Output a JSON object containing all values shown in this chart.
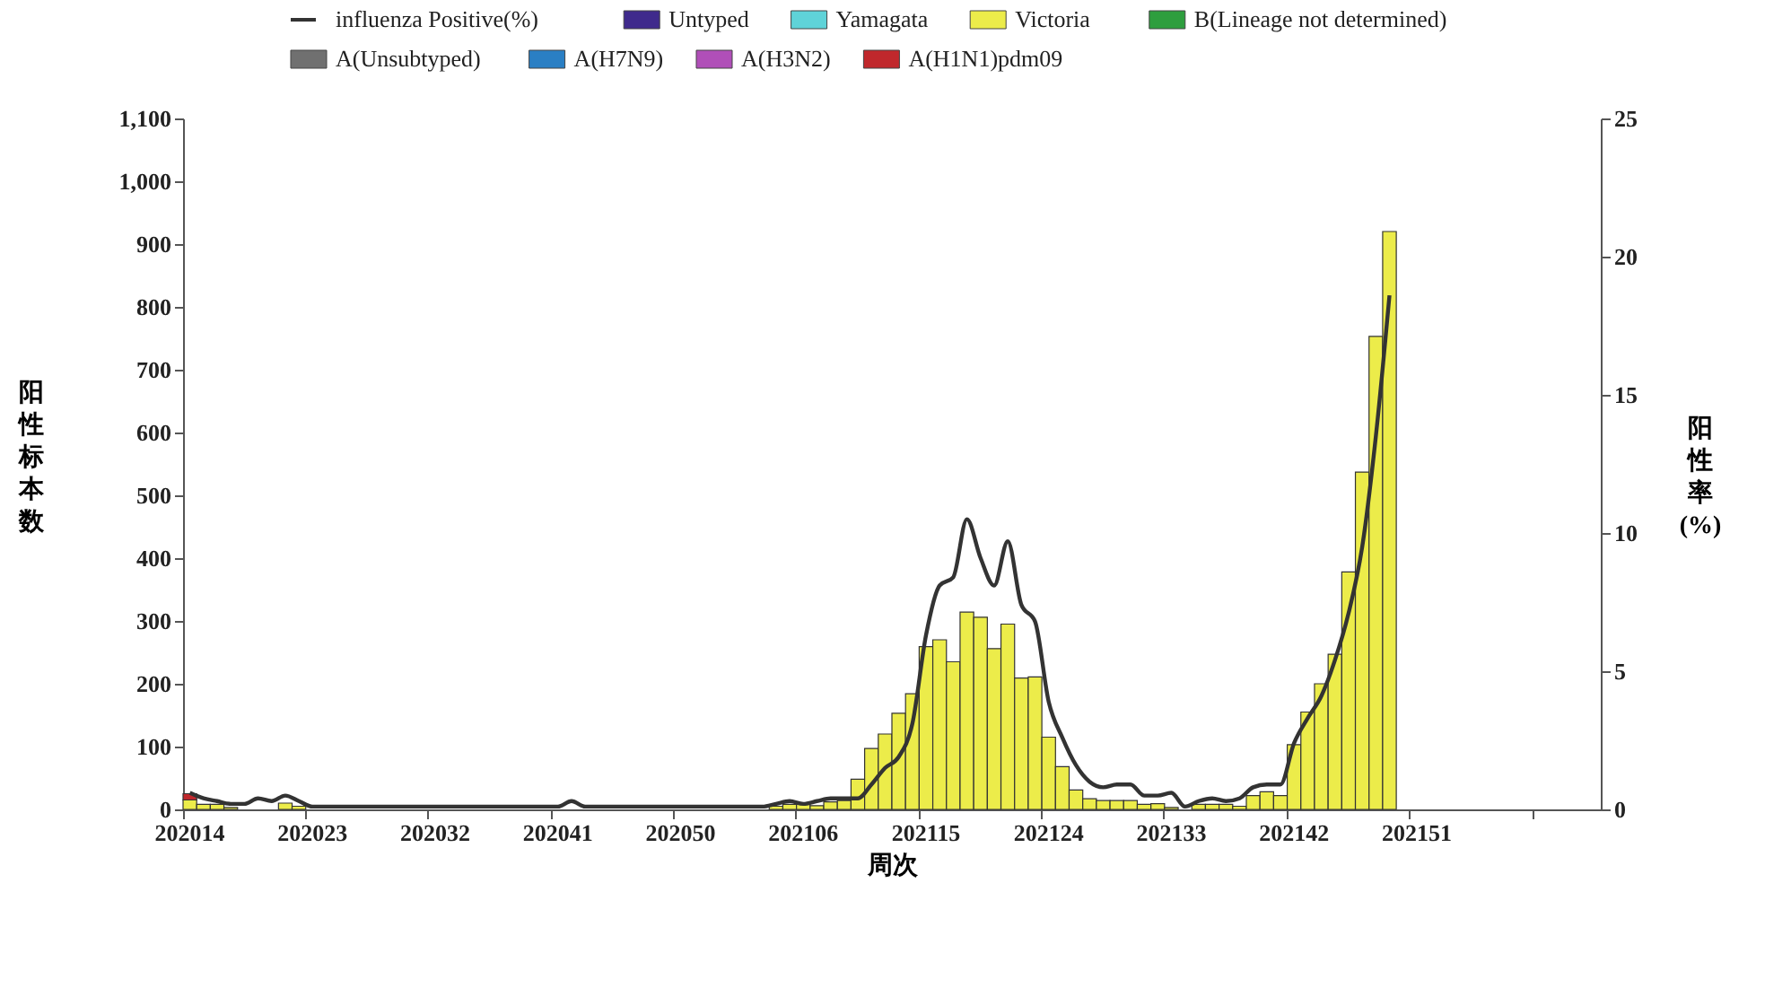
{
  "chart_data": {
    "type": "bar",
    "stacked": true,
    "xlabel": "周次",
    "ylabel": "阳性标本数",
    "y2label": "阳性率(%)",
    "categories": [
      "202014",
      null,
      null,
      null,
      null,
      null,
      null,
      null,
      null,
      "202023",
      null,
      null,
      null,
      null,
      null,
      null,
      null,
      null,
      "202032",
      null,
      null,
      null,
      null,
      null,
      null,
      null,
      null,
      "202041",
      null,
      null,
      null,
      null,
      null,
      null,
      null,
      null,
      "202050",
      null,
      null,
      null,
      null,
      null,
      null,
      null,
      null,
      "202106",
      null,
      null,
      null,
      null,
      null,
      null,
      null,
      null,
      "202115",
      null,
      null,
      null,
      null,
      null,
      null,
      null,
      null,
      "202124",
      null,
      null,
      null,
      null,
      null,
      null,
      null,
      null,
      "202133",
      null,
      null,
      null,
      null,
      null,
      null,
      null,
      null,
      "202142",
      null,
      null,
      null,
      null,
      null,
      null,
      null,
      null,
      "202151",
      null,
      null,
      null,
      null,
      null,
      null,
      null,
      null,
      null,
      null,
      null,
      null,
      null
    ],
    "ylim": [
      0,
      1100
    ],
    "yticks": [
      0,
      100,
      200,
      300,
      400,
      500,
      600,
      700,
      800,
      900,
      {
        "value": 1000,
        "label": "1,000"
      },
      {
        "value": 1100,
        "label": "1,100"
      }
    ],
    "y2lim": [
      0,
      25
    ],
    "y2ticks": [
      0,
      5,
      10,
      15,
      20,
      25
    ],
    "legend": "top",
    "grid": false,
    "series": [
      {
        "name": "influenza Positive(%)",
        "type": "line",
        "axis": "y2",
        "color": "#333333",
        "values": [
          0.6,
          0.4,
          0.3,
          0.2,
          0.2,
          0.4,
          0.3,
          0.5,
          0.3,
          0.1,
          0.1,
          0.1,
          0.1,
          0.1,
          0.1,
          0.1,
          0.1,
          0.1,
          0.1,
          0.1,
          0.1,
          0.1,
          0.1,
          0.1,
          0.1,
          0.1,
          0.1,
          0.1,
          0.3,
          0.1,
          0.1,
          0.1,
          0.1,
          0.1,
          0.1,
          0.1,
          0.1,
          0.1,
          0.1,
          0.1,
          0.1,
          0.1,
          0.1,
          0.2,
          0.3,
          0.2,
          0.3,
          0.4,
          0.4,
          0.4,
          0.9,
          1.5,
          1.9,
          3.1,
          6.3,
          8.1,
          8.4,
          10.5,
          9.1,
          8.1,
          9.7,
          7.4,
          6.8,
          3.9,
          2.6,
          1.6,
          1.0,
          0.8,
          0.9,
          0.9,
          0.5,
          0.5,
          0.6,
          0.1,
          0.3,
          0.4,
          0.3,
          0.4,
          0.8,
          0.9,
          0.9,
          2.4,
          3.3,
          4.1,
          5.4,
          7.1,
          9.5,
          13.5,
          18.6,
          null,
          null,
          null,
          null,
          null,
          null,
          null,
          null,
          null,
          null,
          null,
          null,
          null,
          null,
          null
        ]
      },
      {
        "name": "Untyped",
        "color": "#3f2a8c",
        "values": [
          null,
          null,
          null,
          null,
          null,
          null,
          null,
          null,
          null,
          null,
          null,
          null,
          null,
          null,
          null,
          null,
          null,
          null,
          null,
          null,
          null,
          null,
          null,
          null,
          null,
          null,
          null,
          null,
          null,
          null,
          null,
          null,
          null,
          null,
          null,
          null,
          null,
          null,
          null,
          null,
          null,
          null,
          null,
          null,
          null,
          null,
          null,
          null,
          null,
          null,
          null,
          null,
          null,
          null,
          null,
          null,
          null,
          null,
          null,
          null,
          null,
          null,
          null,
          null,
          null,
          null,
          null,
          null,
          null,
          null,
          null,
          null,
          null,
          null,
          null,
          null,
          null,
          null,
          null,
          null,
          null,
          null,
          null,
          null,
          null,
          null,
          null,
          null,
          null,
          null,
          null,
          null,
          null,
          null,
          null,
          null,
          null,
          null,
          null,
          null,
          null,
          null,
          null,
          null
        ]
      },
      {
        "name": "Yamagata",
        "color": "#5fd3d8",
        "values": [
          null,
          null,
          null,
          null,
          null,
          null,
          null,
          null,
          null,
          null,
          null,
          null,
          null,
          null,
          null,
          null,
          null,
          null,
          null,
          null,
          null,
          null,
          null,
          null,
          null,
          null,
          null,
          null,
          null,
          null,
          null,
          null,
          null,
          null,
          null,
          null,
          null,
          null,
          null,
          null,
          null,
          null,
          null,
          null,
          null,
          null,
          null,
          null,
          null,
          null,
          null,
          null,
          null,
          null,
          null,
          null,
          null,
          null,
          null,
          null,
          null,
          null,
          null,
          null,
          null,
          null,
          null,
          null,
          null,
          null,
          null,
          null,
          null,
          null,
          null,
          null,
          null,
          null,
          null,
          null,
          null,
          null,
          null,
          null,
          null,
          null,
          null,
          null,
          null,
          null,
          null,
          null,
          null,
          null,
          null,
          null,
          null,
          null,
          null,
          null,
          null,
          null,
          null,
          null
        ]
      },
      {
        "name": "Victoria",
        "color": "#ecec4a",
        "values": [
          15,
          8,
          8,
          3,
          null,
          null,
          null,
          10,
          5,
          null,
          null,
          null,
          null,
          null,
          null,
          null,
          null,
          null,
          null,
          null,
          null,
          null,
          null,
          null,
          null,
          null,
          null,
          null,
          null,
          null,
          null,
          null,
          null,
          null,
          null,
          null,
          null,
          null,
          null,
          null,
          null,
          null,
          null,
          5,
          8,
          8,
          6,
          12,
          14,
          48,
          97,
          120,
          153,
          184,
          259,
          270,
          235,
          314,
          306,
          256,
          295,
          209,
          211,
          115,
          68,
          31,
          17,
          14,
          14,
          14,
          8,
          9,
          3,
          null,
          8,
          8,
          8,
          5,
          22,
          28,
          22,
          103,
          155,
          200,
          247,
          378,
          537,
          753,
          920,
          null,
          null,
          null,
          null,
          null,
          null,
          null,
          null,
          null,
          null,
          null,
          null,
          null,
          null,
          null
        ]
      },
      {
        "name": "B(Lineage not determined)",
        "color": "#2e9e3e",
        "values": [
          null,
          null,
          null,
          null,
          null,
          null,
          null,
          null,
          null,
          null,
          null,
          null,
          null,
          null,
          null,
          null,
          null,
          null,
          null,
          null,
          null,
          null,
          null,
          null,
          null,
          null,
          null,
          null,
          null,
          null,
          null,
          null,
          null,
          null,
          null,
          null,
          null,
          null,
          null,
          null,
          null,
          null,
          null,
          null,
          null,
          null,
          null,
          null,
          null,
          null,
          null,
          null,
          null,
          null,
          null,
          null,
          null,
          null,
          null,
          null,
          null,
          null,
          null,
          null,
          null,
          null,
          null,
          null,
          null,
          null,
          null,
          null,
          null,
          null,
          null,
          null,
          null,
          null,
          null,
          null,
          null,
          null,
          null,
          null,
          null,
          null,
          null,
          null,
          null,
          null,
          null,
          null,
          null,
          null,
          null,
          null,
          null,
          null,
          null,
          null,
          null,
          null,
          null,
          null
        ]
      },
      {
        "name": "A(Unsubtyped)",
        "color": "#707070",
        "values": [
          null,
          null,
          null,
          null,
          null,
          null,
          null,
          null,
          null,
          null,
          null,
          null,
          null,
          null,
          null,
          null,
          null,
          null,
          null,
          null,
          null,
          null,
          null,
          null,
          null,
          null,
          null,
          null,
          null,
          null,
          null,
          null,
          null,
          null,
          null,
          null,
          null,
          null,
          null,
          null,
          null,
          null,
          null,
          null,
          null,
          null,
          null,
          null,
          null,
          null,
          null,
          null,
          null,
          null,
          null,
          null,
          null,
          null,
          null,
          null,
          null,
          null,
          null,
          null,
          null,
          null,
          null,
          null,
          null,
          null,
          null,
          null,
          null,
          null,
          null,
          null,
          null,
          null,
          null,
          null,
          null,
          null,
          null,
          null,
          null,
          null,
          null,
          null,
          null,
          null,
          null,
          null,
          null,
          null,
          null,
          null,
          null,
          null,
          null,
          null,
          null,
          null,
          null,
          null
        ]
      },
      {
        "name": "A(H7N9)",
        "color": "#2a7fc4",
        "values": [
          null,
          null,
          null,
          null,
          null,
          null,
          null,
          null,
          null,
          null,
          null,
          null,
          null,
          null,
          null,
          null,
          null,
          null,
          null,
          null,
          null,
          null,
          null,
          null,
          null,
          null,
          null,
          null,
          null,
          null,
          null,
          null,
          null,
          null,
          null,
          null,
          null,
          null,
          null,
          null,
          null,
          null,
          null,
          null,
          null,
          null,
          null,
          null,
          null,
          null,
          null,
          null,
          null,
          null,
          null,
          null,
          null,
          null,
          null,
          null,
          null,
          null,
          null,
          null,
          null,
          null,
          null,
          null,
          null,
          null,
          null,
          null,
          null,
          null,
          null,
          null,
          null,
          null,
          null,
          null,
          null,
          null,
          null,
          null,
          null,
          null,
          null,
          null,
          null,
          null,
          null,
          null,
          null,
          null,
          null,
          null,
          null,
          null,
          null,
          null,
          null,
          null,
          null,
          null
        ]
      },
      {
        "name": "A(H3N2)",
        "color": "#b04fb8",
        "values": [
          null,
          null,
          null,
          null,
          null,
          null,
          null,
          null,
          null,
          null,
          null,
          null,
          null,
          null,
          null,
          null,
          null,
          null,
          null,
          null,
          null,
          null,
          null,
          null,
          null,
          null,
          null,
          null,
          null,
          null,
          null,
          null,
          null,
          null,
          null,
          null,
          null,
          null,
          null,
          null,
          null,
          null,
          null,
          null,
          null,
          null,
          null,
          null,
          null,
          null,
          null,
          null,
          null,
          null,
          null,
          null,
          null,
          null,
          null,
          null,
          null,
          null,
          null,
          null,
          null,
          null,
          null,
          null,
          null,
          null,
          null,
          null,
          null,
          null,
          null,
          null,
          null,
          null,
          null,
          null,
          null,
          null,
          null,
          null,
          null,
          null,
          null,
          null,
          null,
          null,
          null,
          null,
          null,
          null,
          null,
          null,
          null,
          null,
          null,
          null,
          null,
          null,
          null,
          null
        ]
      },
      {
        "name": "A(H1N1)pdm09",
        "color": "#c0282c",
        "values": [
          10,
          null,
          null,
          null,
          null,
          null,
          null,
          null,
          null,
          null,
          null,
          null,
          null,
          null,
          null,
          null,
          null,
          null,
          null,
          null,
          null,
          null,
          null,
          null,
          null,
          null,
          null,
          null,
          null,
          null,
          null,
          null,
          null,
          null,
          null,
          null,
          null,
          null,
          null,
          null,
          null,
          null,
          null,
          null,
          null,
          null,
          null,
          null,
          null,
          null,
          null,
          null,
          null,
          null,
          null,
          null,
          null,
          null,
          null,
          null,
          null,
          null,
          null,
          null,
          null,
          null,
          null,
          null,
          null,
          null,
          null,
          null,
          null,
          null,
          null,
          null,
          null,
          null,
          null,
          null,
          null,
          null,
          null,
          null,
          null,
          null,
          null,
          null,
          null,
          null,
          null,
          null,
          null,
          null,
          null,
          null,
          null,
          null,
          null,
          null,
          null,
          null,
          null,
          null
        ]
      }
    ]
  }
}
